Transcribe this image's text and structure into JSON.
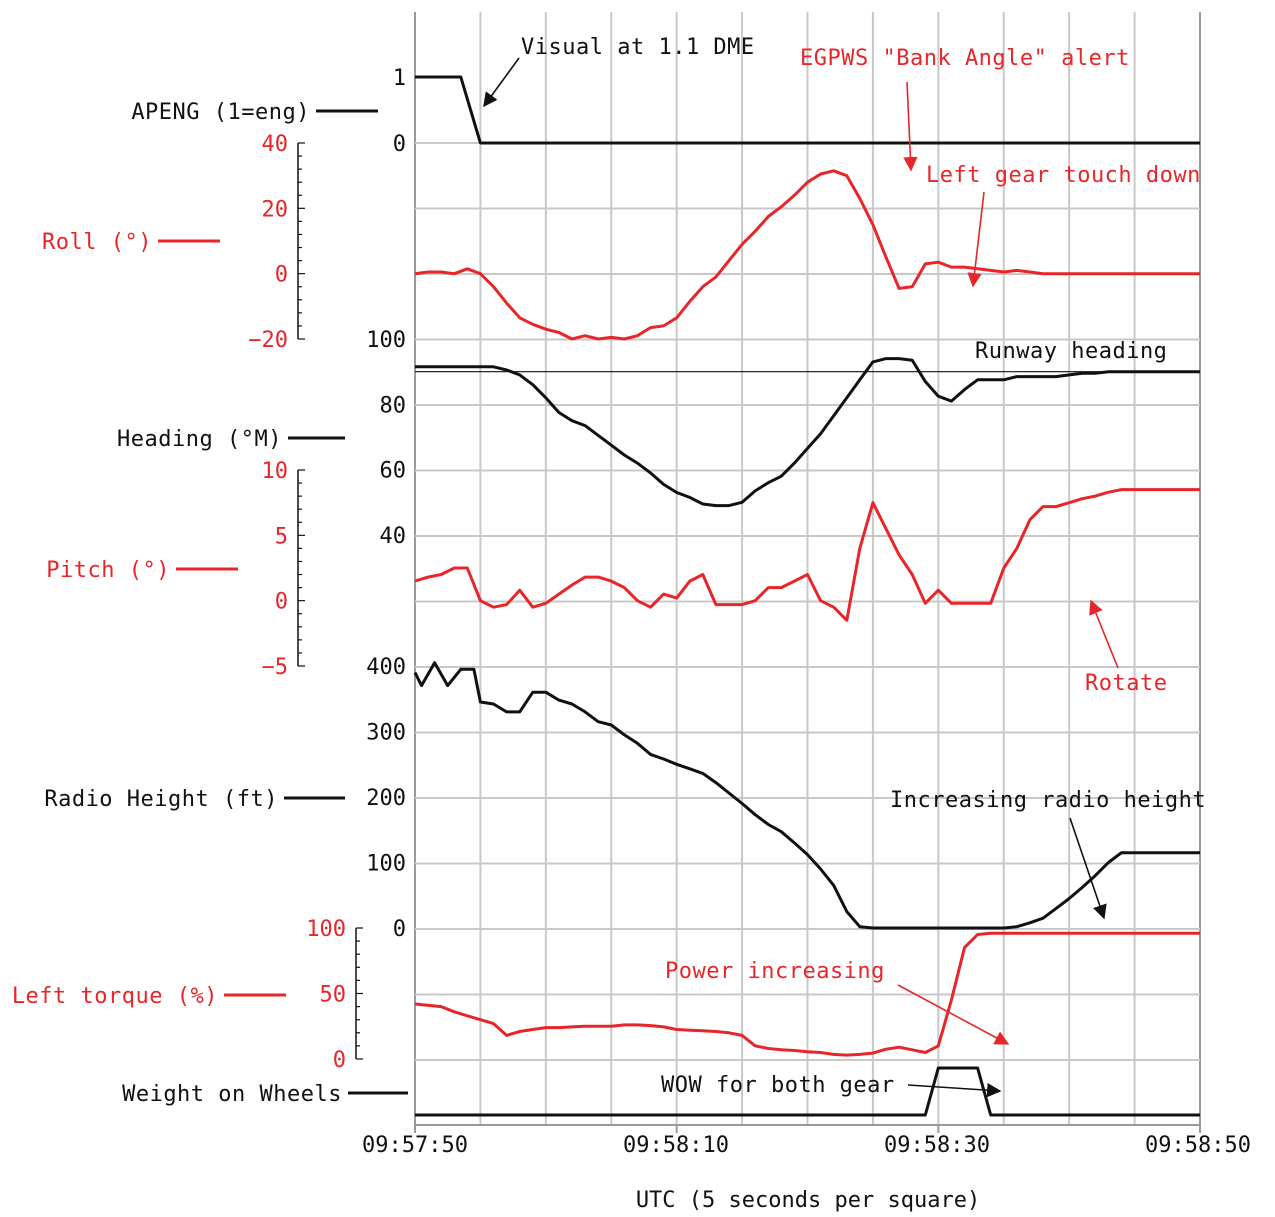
{
  "chart_data": {
    "type": "line",
    "x_axis": {
      "label": "UTC (5 seconds per square)",
      "range": [
        "09:57:50",
        "09:58:50"
      ],
      "ticks": [
        "09:57:50",
        "09:58:10",
        "09:58:30",
        "09:58:50"
      ],
      "grid_seconds": 5
    },
    "grid": true,
    "colors": {
      "black": "#111111",
      "red": "#e8262a",
      "grid": "#c8c8c8"
    },
    "tracks": [
      {
        "name": "APENG (1=eng)",
        "color": "#111111",
        "ylim": [
          0,
          1
        ],
        "ticks": [
          {
            "v": 0,
            "t": "0"
          },
          {
            "v": 1,
            "t": "1"
          }
        ],
        "x": [
          0,
          3.5,
          5,
          60
        ],
        "y": [
          1,
          1,
          0,
          0
        ]
      },
      {
        "name": "Roll (°)",
        "color": "#e8262a",
        "ylim": [
          -20,
          40
        ],
        "ticks": [
          {
            "v": 40,
            "t": "40"
          },
          {
            "v": 20,
            "t": "20"
          },
          {
            "v": 0,
            "t": "0"
          },
          {
            "v": -20,
            "t": "−20"
          }
        ],
        "x": [
          0,
          1,
          2,
          3,
          4,
          5,
          6,
          7,
          8,
          9,
          10,
          11,
          12,
          13,
          14,
          15,
          16,
          17,
          18,
          19,
          20,
          21,
          22,
          23,
          24,
          25,
          26,
          27,
          28,
          29,
          30,
          31,
          32,
          33,
          34,
          35,
          36,
          37,
          38,
          39,
          40,
          41,
          42,
          43,
          44,
          45,
          46,
          47,
          48,
          49,
          50,
          51,
          52,
          53,
          54,
          55,
          56,
          57,
          58,
          59,
          60
        ],
        "y": [
          0,
          0.5,
          0.5,
          0,
          1.5,
          0,
          -4,
          -9,
          -13.5,
          -15.5,
          -17,
          -18,
          -20,
          -19,
          -20,
          -19.5,
          -20,
          -19,
          -16.5,
          -16,
          -13.5,
          -8.5,
          -4,
          -1,
          4,
          9,
          13,
          17.5,
          20.5,
          24,
          28,
          30.5,
          31.5,
          30,
          23,
          15,
          5,
          -4.5,
          -4,
          3,
          3.5,
          2,
          2,
          1.5,
          1,
          0.5,
          1,
          0.5,
          0,
          0,
          0,
          0,
          0,
          0,
          0,
          0,
          0,
          0,
          0,
          0,
          0
        ]
      },
      {
        "name": "Heading (°M)",
        "color": "#111111",
        "ylim": [
          40,
          100
        ],
        "ticks": [
          {
            "v": 100,
            "t": "100"
          },
          {
            "v": 80,
            "t": "80"
          },
          {
            "v": 60,
            "t": "60"
          },
          {
            "v": 40,
            "t": "40"
          }
        ],
        "annotation_line": {
          "label": "Runway heading",
          "value": 90
        },
        "x": [
          0,
          3,
          6,
          7,
          8,
          9,
          10,
          11,
          12,
          13,
          14,
          15,
          16,
          17,
          18,
          19,
          20,
          21,
          22,
          23,
          24,
          25,
          26,
          27,
          28,
          29,
          30,
          31,
          32,
          33,
          34,
          35,
          36,
          37,
          38,
          39,
          40,
          41,
          42,
          43,
          44,
          45,
          46,
          47,
          48,
          49,
          50,
          51,
          52,
          53,
          54,
          55,
          56,
          57,
          58,
          59,
          60
        ],
        "y": [
          91.5,
          91.5,
          91.5,
          90.5,
          89,
          86,
          82,
          77.5,
          75,
          73.5,
          70.5,
          67.5,
          64.5,
          62,
          59,
          55.5,
          53,
          51.5,
          49.5,
          49,
          49,
          50,
          53.5,
          56,
          58,
          62,
          66.5,
          71,
          76.5,
          82,
          87.5,
          93,
          94,
          94,
          93.5,
          87,
          82.5,
          81,
          84.5,
          87.5,
          87.5,
          87.5,
          88.5,
          88.5,
          88.5,
          88.5,
          89,
          89.5,
          89.5,
          90,
          90,
          90,
          90,
          90,
          90,
          90,
          90
        ]
      },
      {
        "name": "Pitch (°)",
        "color": "#e8262a",
        "ylim": [
          -5,
          10
        ],
        "ticks": [
          {
            "v": 10,
            "t": "10"
          },
          {
            "v": 5,
            "t": "5"
          },
          {
            "v": 0,
            "t": "0"
          },
          {
            "v": -5,
            "t": "−5"
          }
        ],
        "x": [
          0,
          1,
          2,
          3,
          4,
          5,
          6,
          7,
          8,
          9,
          10,
          11,
          12,
          13,
          14,
          15,
          16,
          17,
          18,
          19,
          20,
          21,
          22,
          23,
          24,
          25,
          26,
          27,
          28,
          29,
          30,
          31,
          32,
          33,
          34,
          35,
          36,
          37,
          38,
          39,
          40,
          41,
          42,
          43,
          44,
          45,
          46,
          47,
          48,
          49,
          50,
          51,
          52,
          53,
          54,
          55,
          56,
          57,
          58,
          59,
          60
        ],
        "y": [
          1.5,
          1.8,
          2,
          2.5,
          2.5,
          0,
          -0.5,
          -0.3,
          0.8,
          -0.5,
          -0.2,
          0.5,
          1.2,
          1.8,
          1.8,
          1.5,
          1,
          0,
          -0.5,
          0.5,
          0.2,
          1.5,
          2,
          -0.3,
          -0.3,
          -0.3,
          0,
          1,
          1,
          1.5,
          2,
          0,
          -0.5,
          -1.5,
          4,
          7.5,
          5.5,
          3.5,
          2,
          -0.2,
          0.8,
          -0.2,
          -0.2,
          -0.2,
          -0.2,
          2.5,
          4,
          6.2,
          7.2,
          7.2,
          7.5,
          7.8,
          8,
          8.3,
          8.5,
          8.5,
          8.5,
          8.5,
          8.5,
          8.5,
          8.5
        ]
      },
      {
        "name": "Radio Height (ft)",
        "color": "#111111",
        "ylim": [
          0,
          400
        ],
        "ticks": [
          {
            "v": 400,
            "t": "400"
          },
          {
            "v": 300,
            "t": "300"
          },
          {
            "v": 200,
            "t": "200"
          },
          {
            "v": 100,
            "t": "100"
          },
          {
            "v": 0,
            "t": "0"
          }
        ],
        "x": [
          0,
          0.5,
          1.5,
          2.5,
          3.5,
          4.5,
          5,
          6,
          7,
          8,
          9,
          10,
          11,
          12,
          13,
          14,
          15,
          16,
          17,
          18,
          19,
          20,
          21,
          22,
          23,
          24,
          25,
          26,
          27,
          28,
          29,
          30,
          31,
          32,
          33,
          34,
          35,
          36,
          37,
          38,
          39,
          40,
          41,
          42,
          43,
          44,
          45,
          46,
          47,
          48,
          49,
          50,
          51,
          52,
          53,
          54,
          55,
          56,
          57,
          58,
          59,
          60
        ],
        "y": [
          390,
          370,
          405,
          370,
          395,
          395,
          345,
          342,
          330,
          330,
          360,
          360,
          348,
          342,
          330,
          315,
          310,
          295,
          282,
          265,
          258,
          250,
          243,
          236,
          222,
          206,
          190,
          173,
          158,
          147,
          130,
          112,
          90,
          65,
          25,
          2,
          0,
          0,
          0,
          0,
          0,
          0,
          0,
          0,
          0,
          0,
          0,
          2,
          8,
          15,
          30,
          45,
          62,
          80,
          100,
          115,
          115,
          115,
          115,
          115,
          115,
          115
        ]
      },
      {
        "name": "Left torque (%)",
        "color": "#e8262a",
        "ylim": [
          0,
          100
        ],
        "ticks": [
          {
            "v": 100,
            "t": "100"
          },
          {
            "v": 50,
            "t": "50"
          },
          {
            "v": 0,
            "t": "0"
          }
        ],
        "x": [
          0,
          2,
          3,
          4,
          5,
          6,
          7,
          8,
          9,
          10,
          11,
          12,
          13,
          14,
          15,
          16,
          17,
          18,
          19,
          20,
          21,
          22,
          23,
          24,
          25,
          26,
          27,
          28,
          29,
          30,
          31,
          32,
          33,
          34,
          35,
          36,
          37,
          38,
          39,
          40,
          41,
          42,
          43,
          44,
          45,
          46,
          47,
          48,
          49,
          50,
          51,
          52,
          53,
          54,
          55,
          56,
          57,
          58,
          59,
          60
        ],
        "y": [
          42,
          40,
          36,
          33,
          30,
          27,
          18,
          21,
          22.5,
          24,
          24,
          24.5,
          25,
          25,
          25,
          26,
          26,
          25.5,
          24.5,
          22.5,
          22,
          21.5,
          21,
          20,
          18,
          10,
          8,
          7,
          6.5,
          5.5,
          5,
          3.5,
          3,
          3.5,
          4.5,
          7.5,
          9,
          7,
          5,
          10,
          45,
          85,
          95,
          96,
          96,
          96,
          96,
          96,
          96,
          96,
          96,
          96,
          96,
          96,
          96,
          96,
          96,
          96,
          96,
          96
        ]
      },
      {
        "name": "Weight on Wheels",
        "color": "#111111",
        "ylim": [
          0,
          1
        ],
        "ticks": [],
        "x": [
          0,
          39,
          40,
          43,
          44,
          60
        ],
        "y": [
          0,
          0,
          1,
          1,
          0,
          0
        ]
      }
    ],
    "annotations": [
      {
        "text": "Visual at 1.1 DME",
        "color": "#111111"
      },
      {
        "text": "EGPWS \"Bank Angle\" alert",
        "color": "#e8262a"
      },
      {
        "text": "Left gear touch down",
        "color": "#e8262a"
      },
      {
        "text": "Runway heading",
        "color": "#111111"
      },
      {
        "text": "Rotate",
        "color": "#e8262a"
      },
      {
        "text": "Increasing radio height",
        "color": "#111111"
      },
      {
        "text": "Power increasing",
        "color": "#e8262a"
      },
      {
        "text": "WOW for both gear",
        "color": "#111111"
      }
    ]
  }
}
